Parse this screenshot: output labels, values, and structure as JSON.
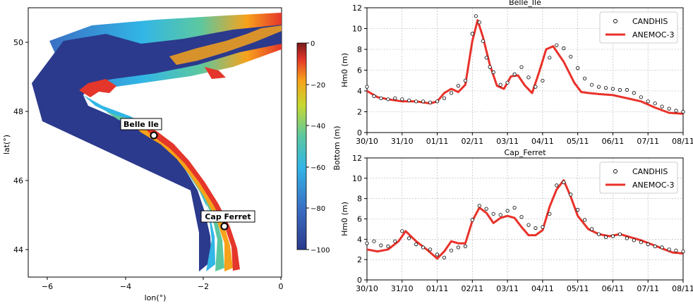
{
  "map": {
    "xlabel": "lon(°)",
    "ylabel": "lat(°)",
    "xticks": [
      "−6",
      "−4",
      "−2",
      "0"
    ],
    "yticks": [
      "44",
      "46",
      "48",
      "50"
    ],
    "colorbar_label": "Bottom (m)",
    "colorbar_ticks": [
      "0",
      "−20",
      "−40",
      "−60",
      "−80",
      "−100"
    ],
    "stations": [
      {
        "label": "Belle Ile"
      },
      {
        "label": "Cap Ferret"
      }
    ]
  },
  "colors": {
    "model": "#e8322a",
    "obs": "#000000",
    "deep": "#2b3a8c",
    "grid": "#b0b0b0"
  },
  "chart_data": [
    {
      "type": "line",
      "title": "Belle_Ile",
      "ylabel": "Hm0 (m)",
      "xlabel": "",
      "ylim": [
        0,
        12
      ],
      "yticks": [
        "0",
        "2",
        "4",
        "6",
        "8",
        "10",
        "12"
      ],
      "categories": [
        "30/10",
        "31/10",
        "01/11",
        "02/11",
        "03/11",
        "04/11",
        "05/11",
        "06/11",
        "07/11",
        "08/11"
      ],
      "legend": "upper right",
      "series": [
        {
          "name": "CANDHIS",
          "style": "open-circle-markers",
          "x": [
            0,
            0.2,
            0.4,
            0.6,
            0.8,
            1.0,
            1.2,
            1.4,
            1.6,
            1.8,
            2.0,
            2.2,
            2.4,
            2.6,
            2.8,
            3.0,
            3.1,
            3.2,
            3.3,
            3.4,
            3.5,
            3.6,
            3.8,
            4.0,
            4.2,
            4.4,
            4.6,
            4.8,
            5.0,
            5.2,
            5.4,
            5.6,
            5.8,
            6.0,
            6.2,
            6.4,
            6.6,
            6.8,
            7.0,
            7.2,
            7.4,
            7.6,
            7.8,
            8.0,
            8.2,
            8.4,
            8.6,
            8.8,
            9.0
          ],
          "y": [
            4.4,
            3.5,
            3.3,
            3.2,
            3.3,
            3.2,
            3.1,
            3.0,
            3.0,
            2.9,
            3.0,
            3.3,
            3.8,
            4.5,
            5.0,
            9.5,
            11.2,
            10.6,
            8.8,
            7.2,
            6.3,
            5.8,
            4.6,
            4.8,
            5.6,
            6.3,
            5.3,
            4.4,
            5.0,
            7.2,
            8.4,
            8.1,
            7.3,
            6.2,
            5.2,
            4.6,
            4.4,
            4.3,
            4.2,
            4.1,
            4.1,
            3.8,
            3.4,
            3.0,
            2.8,
            2.5,
            2.3,
            2.1,
            2.0
          ]
        },
        {
          "name": "ANEMOC-3",
          "style": "solid-line",
          "x": [
            0,
            0.3,
            0.6,
            1.0,
            1.4,
            1.8,
            2.0,
            2.2,
            2.4,
            2.6,
            2.8,
            3.0,
            3.15,
            3.3,
            3.5,
            3.7,
            3.9,
            4.1,
            4.3,
            4.5,
            4.7,
            4.9,
            5.1,
            5.3,
            5.6,
            5.9,
            6.1,
            6.3,
            6.6,
            7.0,
            7.4,
            7.8,
            8.2,
            8.6,
            9.0
          ],
          "y": [
            4.0,
            3.4,
            3.2,
            3.0,
            3.0,
            2.8,
            3.0,
            3.8,
            4.2,
            3.9,
            4.6,
            8.8,
            10.8,
            9.2,
            6.5,
            4.5,
            4.2,
            5.4,
            5.5,
            4.5,
            3.8,
            5.8,
            8.0,
            8.3,
            6.8,
            4.8,
            3.9,
            3.8,
            3.7,
            3.6,
            3.3,
            3.0,
            2.4,
            1.9,
            1.8
          ]
        }
      ]
    },
    {
      "type": "line",
      "title": "Cap_Ferret",
      "ylabel": "Hm0 (m)",
      "xlabel": "",
      "ylim": [
        0,
        12
      ],
      "yticks": [
        "0",
        "2",
        "4",
        "6",
        "8",
        "10",
        "12"
      ],
      "categories": [
        "30/10",
        "31/10",
        "01/11",
        "02/11",
        "03/11",
        "04/11",
        "05/11",
        "06/11",
        "07/11",
        "08/11"
      ],
      "legend": "upper right",
      "series": [
        {
          "name": "CANDHIS",
          "style": "open-circle-markers",
          "x": [
            0,
            0.2,
            0.4,
            0.6,
            0.8,
            1.0,
            1.2,
            1.4,
            1.6,
            1.8,
            2.0,
            2.2,
            2.4,
            2.6,
            2.8,
            3.0,
            3.2,
            3.4,
            3.6,
            3.8,
            4.0,
            4.2,
            4.4,
            4.6,
            4.8,
            5.0,
            5.2,
            5.4,
            5.6,
            5.8,
            6.0,
            6.2,
            6.4,
            6.6,
            6.8,
            7.0,
            7.2,
            7.4,
            7.6,
            7.8,
            8.0,
            8.2,
            8.4,
            8.6,
            8.8,
            9.0
          ],
          "y": [
            3.6,
            3.8,
            3.4,
            3.3,
            3.8,
            4.8,
            4.1,
            3.5,
            3.2,
            3.0,
            2.5,
            2.2,
            2.9,
            3.2,
            3.3,
            5.9,
            7.3,
            7.0,
            6.5,
            6.4,
            6.8,
            7.1,
            6.2,
            5.4,
            5.1,
            5.2,
            6.5,
            9.3,
            9.6,
            8.4,
            6.9,
            5.9,
            5.0,
            4.5,
            4.2,
            4.3,
            4.5,
            4.1,
            3.9,
            3.7,
            3.5,
            3.3,
            3.2,
            3.0,
            2.9,
            2.8
          ]
        },
        {
          "name": "ANEMOC-3",
          "style": "solid-line",
          "x": [
            0,
            0.3,
            0.6,
            0.9,
            1.1,
            1.4,
            1.7,
            2.0,
            2.2,
            2.4,
            2.6,
            2.8,
            3.0,
            3.2,
            3.4,
            3.6,
            3.8,
            4.0,
            4.2,
            4.4,
            4.6,
            4.8,
            5.0,
            5.2,
            5.4,
            5.6,
            5.8,
            6.0,
            6.3,
            6.6,
            6.9,
            7.2,
            7.5,
            7.8,
            8.1,
            8.4,
            8.7,
            9.0
          ],
          "y": [
            3.0,
            2.8,
            3.0,
            3.8,
            4.8,
            3.8,
            3.0,
            2.1,
            2.8,
            3.8,
            3.6,
            3.6,
            5.8,
            7.1,
            6.6,
            5.6,
            6.1,
            6.3,
            6.1,
            5.2,
            4.4,
            4.4,
            4.9,
            7.2,
            8.9,
            9.8,
            8.2,
            6.3,
            5.0,
            4.5,
            4.3,
            4.5,
            4.2,
            3.9,
            3.5,
            3.1,
            2.7,
            2.6
          ]
        }
      ]
    }
  ]
}
